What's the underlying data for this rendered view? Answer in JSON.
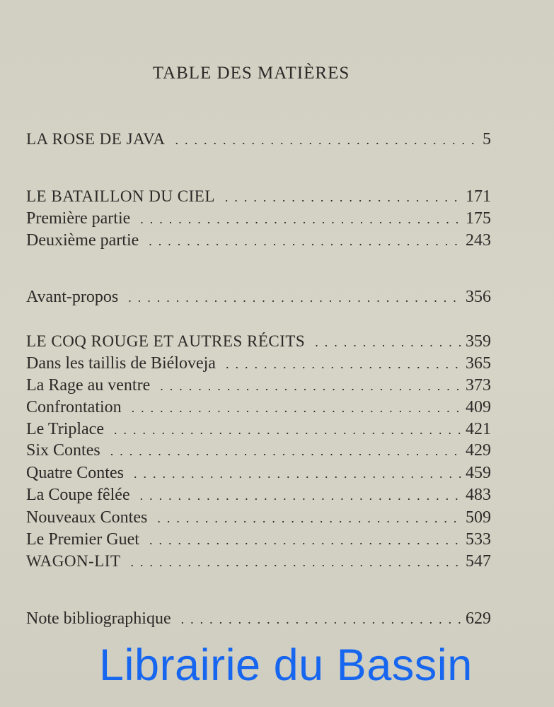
{
  "title": "TABLE DES MATIÈRES",
  "entries": [
    {
      "label": "LA ROSE DE JAVA",
      "page": "5"
    },
    {
      "label": "LE BATAILLON DU CIEL",
      "page": "171"
    },
    {
      "label": "Première partie",
      "page": "175"
    },
    {
      "label": "Deuxième partie",
      "page": "243"
    },
    {
      "label": "Avant-propos",
      "page": "356"
    },
    {
      "label": "LE COQ ROUGE ET AUTRES RÉCITS",
      "page": "359"
    },
    {
      "label": "Dans les taillis de Biéloveja",
      "page": "365"
    },
    {
      "label": "La Rage au ventre",
      "page": "373"
    },
    {
      "label": "Confrontation",
      "page": "409"
    },
    {
      "label": "Le Triplace",
      "page": "421"
    },
    {
      "label": "Six Contes",
      "page": "429"
    },
    {
      "label": "Quatre Contes",
      "page": "459"
    },
    {
      "label": "La Coupe fêlée",
      "page": "483"
    },
    {
      "label": "Nouveaux Contes",
      "page": "509"
    },
    {
      "label": "Le Premier Guet",
      "page": "533"
    },
    {
      "label": "WAGON-LIT",
      "page": "547"
    },
    {
      "label": "Note bibliographique",
      "page": "629"
    }
  ],
  "watermark": "Librairie du Bassin",
  "colors": {
    "paper": "#d4d2c4",
    "ink": "#2b2a28",
    "watermark": "#1766f0"
  }
}
